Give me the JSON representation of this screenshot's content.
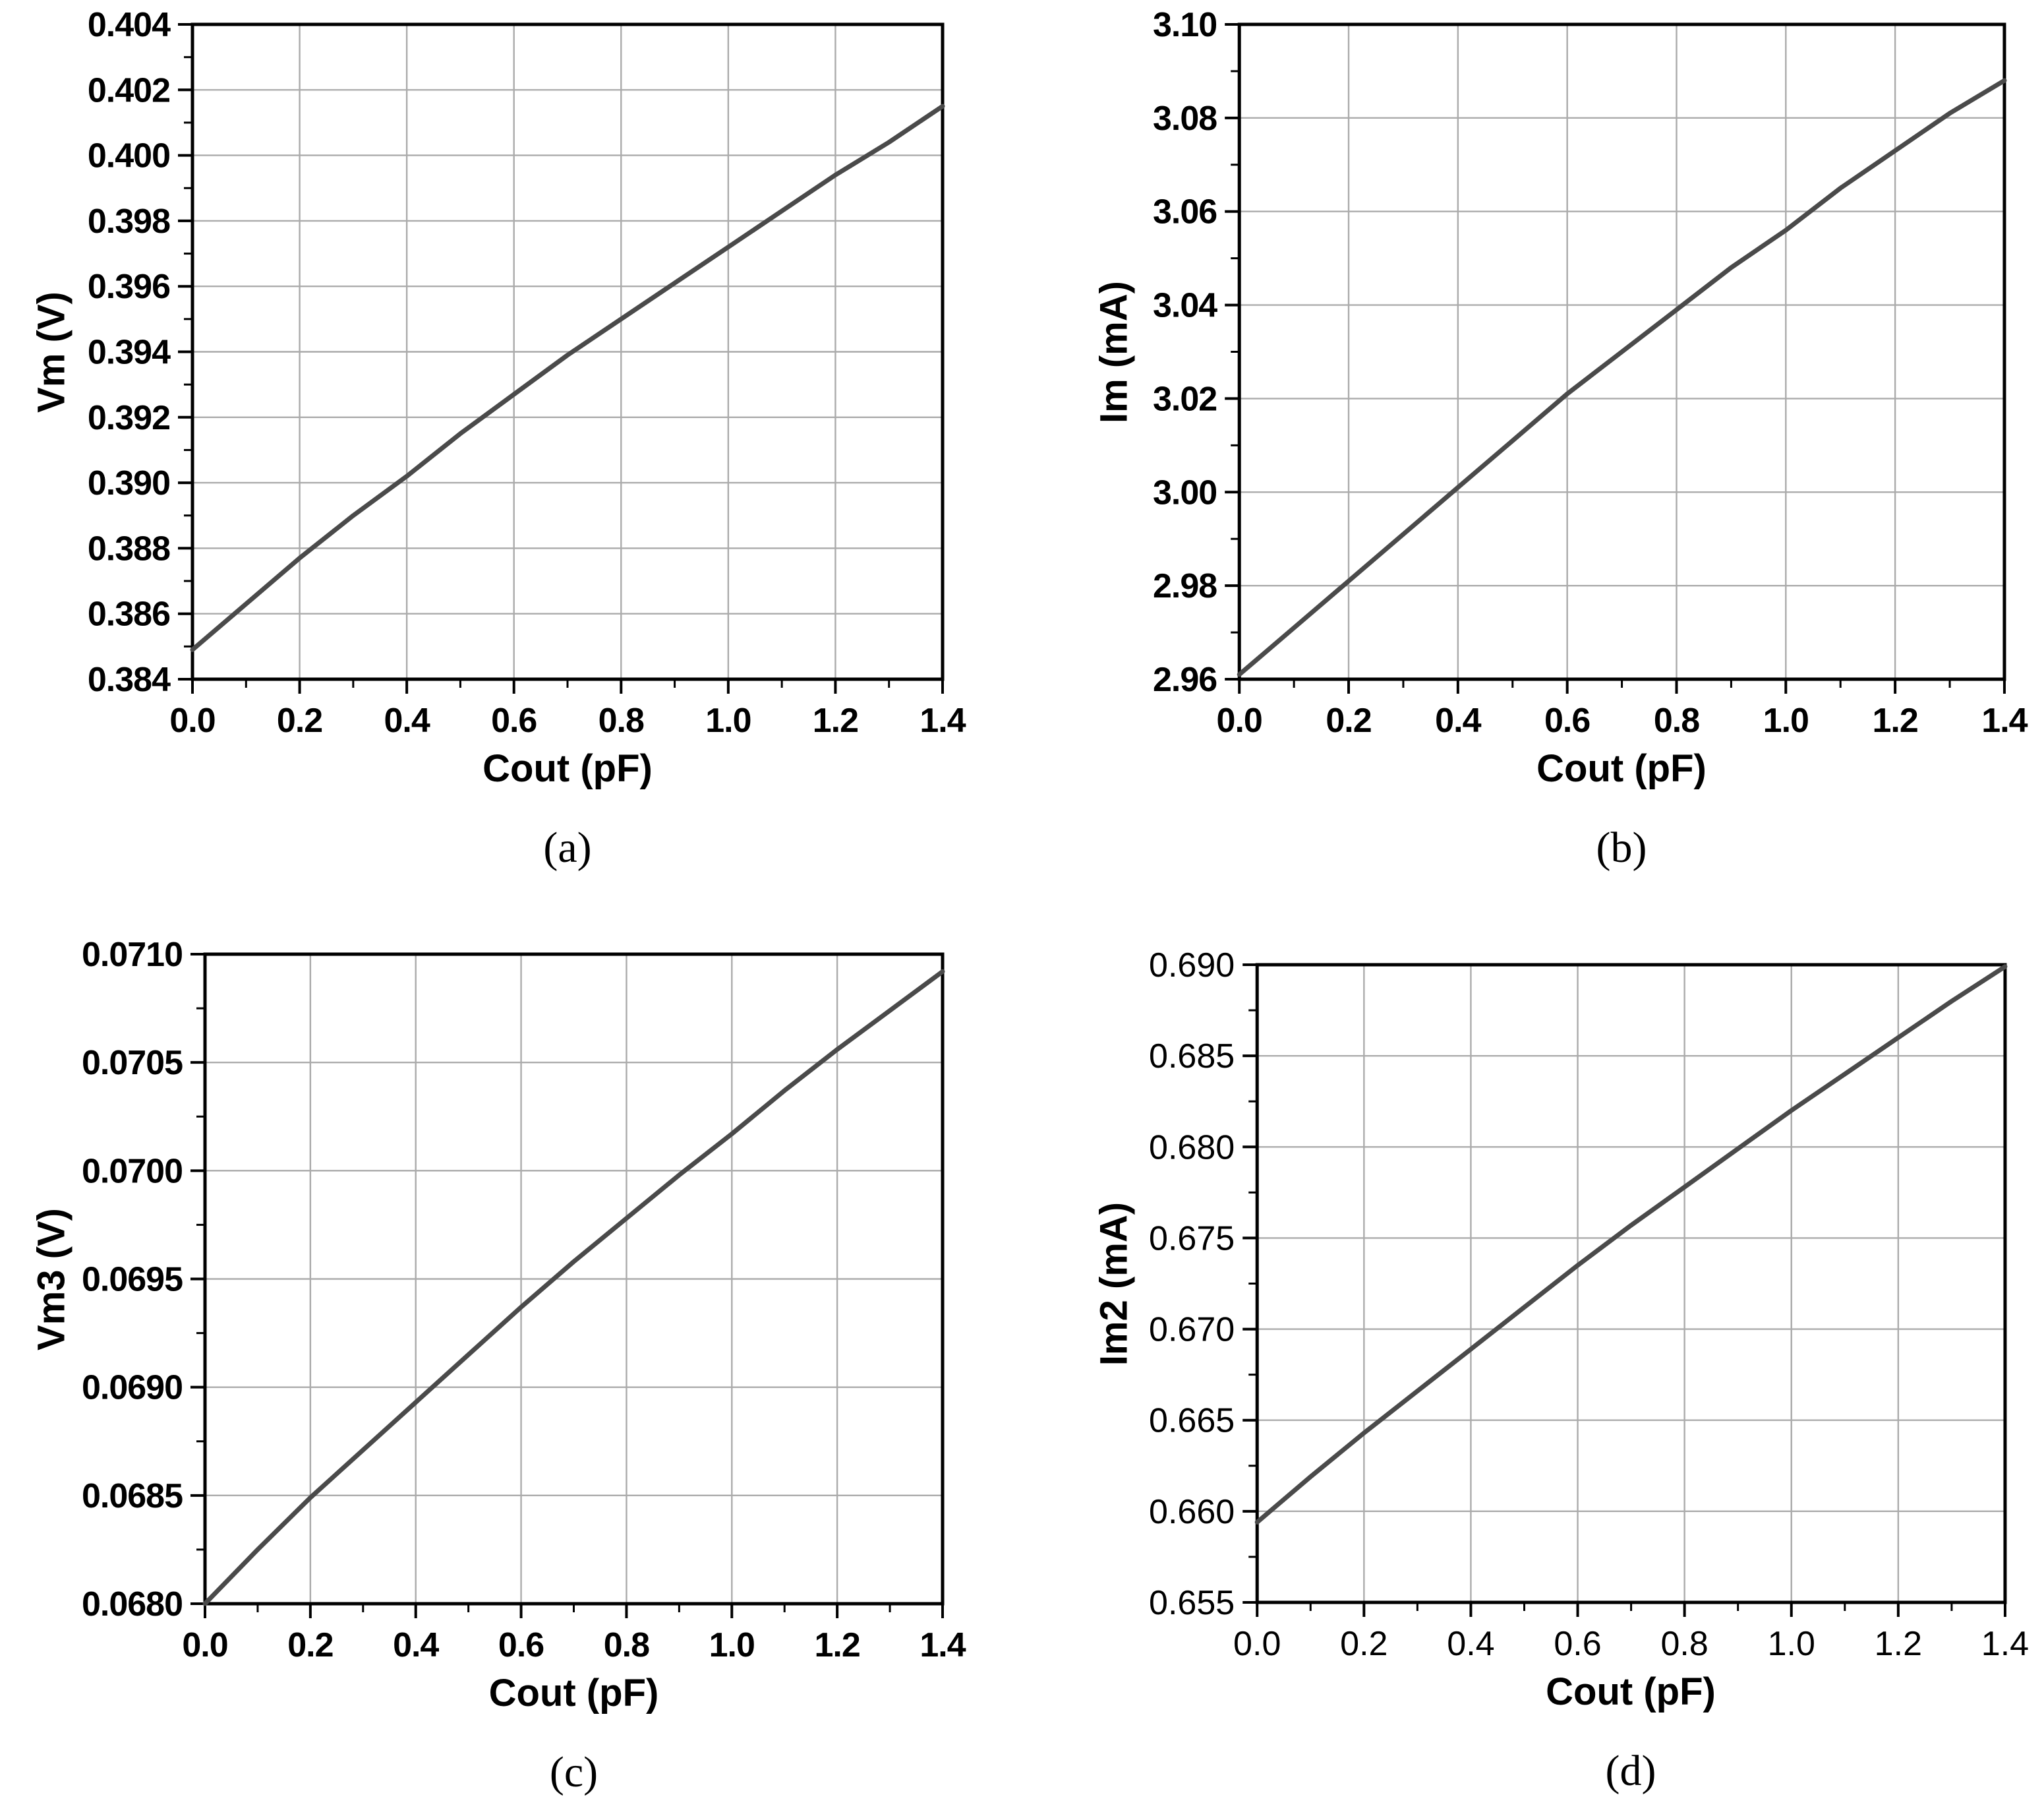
{
  "figure": {
    "background": "#ffffff",
    "frame_color": "#000000",
    "grid_color": "#ababab"
  },
  "chart_data": [
    {
      "id": "a",
      "type": "line",
      "xlabel": "Cout (pF)",
      "ylabel": "Vm (V)",
      "caption": "(a)",
      "xlim": [
        0.0,
        1.4
      ],
      "ylim": [
        0.384,
        0.404
      ],
      "grid": true,
      "legend": "none",
      "line_color": "#4a4a4a",
      "xtick_labels": [
        "0.0",
        "0.2",
        "0.4",
        "0.6",
        "0.8",
        "1.0",
        "1.2",
        "1.4"
      ],
      "ytick_labels": [
        "0.384",
        "0.386",
        "0.388",
        "0.390",
        "0.392",
        "0.394",
        "0.396",
        "0.398",
        "0.400",
        "0.402",
        "0.404"
      ],
      "x": [
        0.0,
        0.1,
        0.2,
        0.3,
        0.4,
        0.5,
        0.6,
        0.7,
        0.8,
        0.9,
        1.0,
        1.1,
        1.2,
        1.3,
        1.4
      ],
      "y": [
        0.3849,
        0.3863,
        0.3877,
        0.389,
        0.3902,
        0.3915,
        0.3927,
        0.3939,
        0.395,
        0.3961,
        0.3972,
        0.3983,
        0.3994,
        0.4004,
        0.4015
      ]
    },
    {
      "id": "b",
      "type": "line",
      "xlabel": "Cout (pF)",
      "ylabel": "Im (mA)",
      "caption": "(b)",
      "xlim": [
        0.0,
        1.4
      ],
      "ylim": [
        2.96,
        3.1
      ],
      "grid": true,
      "legend": "none",
      "line_color": "#4a4a4a",
      "xtick_labels": [
        "0.0",
        "0.2",
        "0.4",
        "0.6",
        "0.8",
        "1.0",
        "1.2",
        "1.4"
      ],
      "ytick_labels": [
        "2.96",
        "2.98",
        "3.00",
        "3.02",
        "3.04",
        "3.06",
        "3.08",
        "3.10"
      ],
      "x": [
        0.0,
        0.1,
        0.2,
        0.3,
        0.4,
        0.5,
        0.6,
        0.7,
        0.8,
        0.9,
        1.0,
        1.1,
        1.2,
        1.3,
        1.4
      ],
      "y": [
        2.961,
        2.971,
        2.981,
        2.991,
        3.001,
        3.011,
        3.021,
        3.03,
        3.039,
        3.048,
        3.056,
        3.065,
        3.073,
        3.081,
        3.088
      ]
    },
    {
      "id": "c",
      "type": "line",
      "xlabel": "Cout (pF)",
      "ylabel": "Vm3 (V)",
      "caption": "(c)",
      "xlim": [
        0.0,
        1.4
      ],
      "ylim": [
        0.068,
        0.071
      ],
      "grid": true,
      "legend": "none",
      "line_color": "#4a4a4a",
      "xtick_labels": [
        "0.0",
        "0.2",
        "0.4",
        "0.6",
        "0.8",
        "1.0",
        "1.2",
        "1.4"
      ],
      "ytick_labels": [
        "0.0680",
        "0.0685",
        "0.0690",
        "0.0695",
        "0.0700",
        "0.0705",
        "0.0710"
      ],
      "x": [
        0.0,
        0.1,
        0.2,
        0.3,
        0.4,
        0.5,
        0.6,
        0.7,
        0.8,
        0.9,
        1.0,
        1.1,
        1.2,
        1.3,
        1.4
      ],
      "y": [
        0.068,
        0.06825,
        0.06849,
        0.06871,
        0.06893,
        0.06915,
        0.06937,
        0.06958,
        0.06978,
        0.06998,
        0.07017,
        0.07037,
        0.07056,
        0.07074,
        0.07092
      ]
    },
    {
      "id": "d",
      "type": "line",
      "xlabel": "Cout (pF)",
      "ylabel": "Im2 (mA)",
      "caption": "(d)",
      "xlim": [
        0.0,
        1.4
      ],
      "ylim": [
        0.655,
        0.69
      ],
      "grid": true,
      "legend": "none",
      "line_color": "#4a4a4a",
      "xtick_labels": [
        "0.0",
        "0.2",
        "0.4",
        "0.6",
        "0.8",
        "1.0",
        "1.2",
        "1.4"
      ],
      "ytick_labels": [
        "0.655",
        "0.660",
        "0.665",
        "0.670",
        "0.675",
        "0.680",
        "0.685",
        "0.690"
      ],
      "x": [
        0.0,
        0.1,
        0.2,
        0.3,
        0.4,
        0.5,
        0.6,
        0.7,
        0.8,
        0.9,
        1.0,
        1.1,
        1.2,
        1.3,
        1.4
      ],
      "y": [
        0.6594,
        0.6619,
        0.6643,
        0.6666,
        0.6689,
        0.6712,
        0.6735,
        0.6757,
        0.6778,
        0.6799,
        0.682,
        0.684,
        0.686,
        0.688,
        0.6899
      ]
    }
  ]
}
